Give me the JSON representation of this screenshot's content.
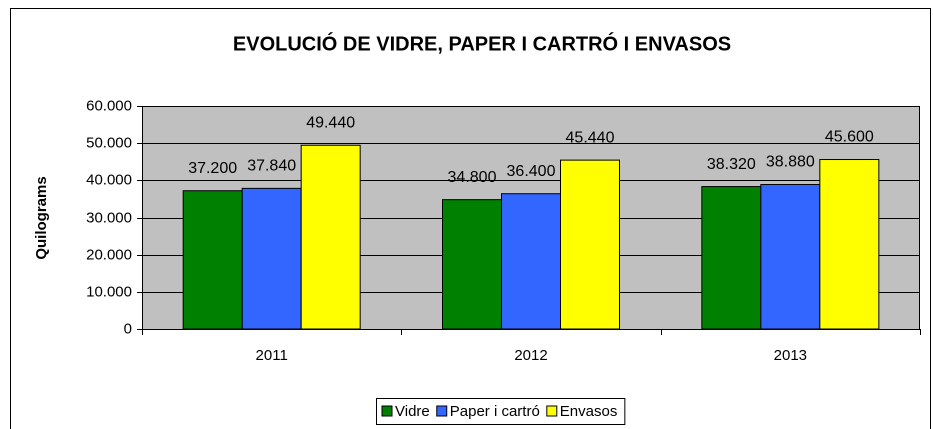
{
  "chart_data": {
    "type": "bar",
    "title": "EVOLUCIÓ DE VIDRE, PAPER I CARTRÓ I ENVASOS",
    "y_label": "Quilograms",
    "categories": [
      "2011",
      "2012",
      "2013"
    ],
    "series": [
      {
        "name": "Vidre",
        "color": "#008000",
        "values": [
          37200,
          34800,
          38320
        ],
        "value_labels": [
          "37.200",
          "34.800",
          "38.320"
        ]
      },
      {
        "name": "Paper i cartró",
        "color": "#3366ff",
        "values": [
          37840,
          36400,
          38880
        ],
        "value_labels": [
          "37.840",
          "36.400",
          "38.880"
        ]
      },
      {
        "name": "Envasos",
        "color": "#ffff00",
        "values": [
          49440,
          45440,
          45600
        ],
        "value_labels": [
          "49.440",
          "45.440",
          "45.600"
        ]
      }
    ],
    "ylim": [
      0,
      60000
    ],
    "yticks": [
      0,
      {
        "value": 10000,
        "label": "10.000"
      },
      {
        "value": 20000,
        "label": "20.000"
      },
      {
        "value": 30000,
        "label": "30.000"
      },
      {
        "value": 40000,
        "label": "40.000"
      },
      {
        "value": 50000,
        "label": "50.000"
      },
      {
        "value": 60000,
        "label": "60.000"
      }
    ],
    "grid": true,
    "plot_background": "#c0c0c0",
    "legend": "bottom"
  }
}
